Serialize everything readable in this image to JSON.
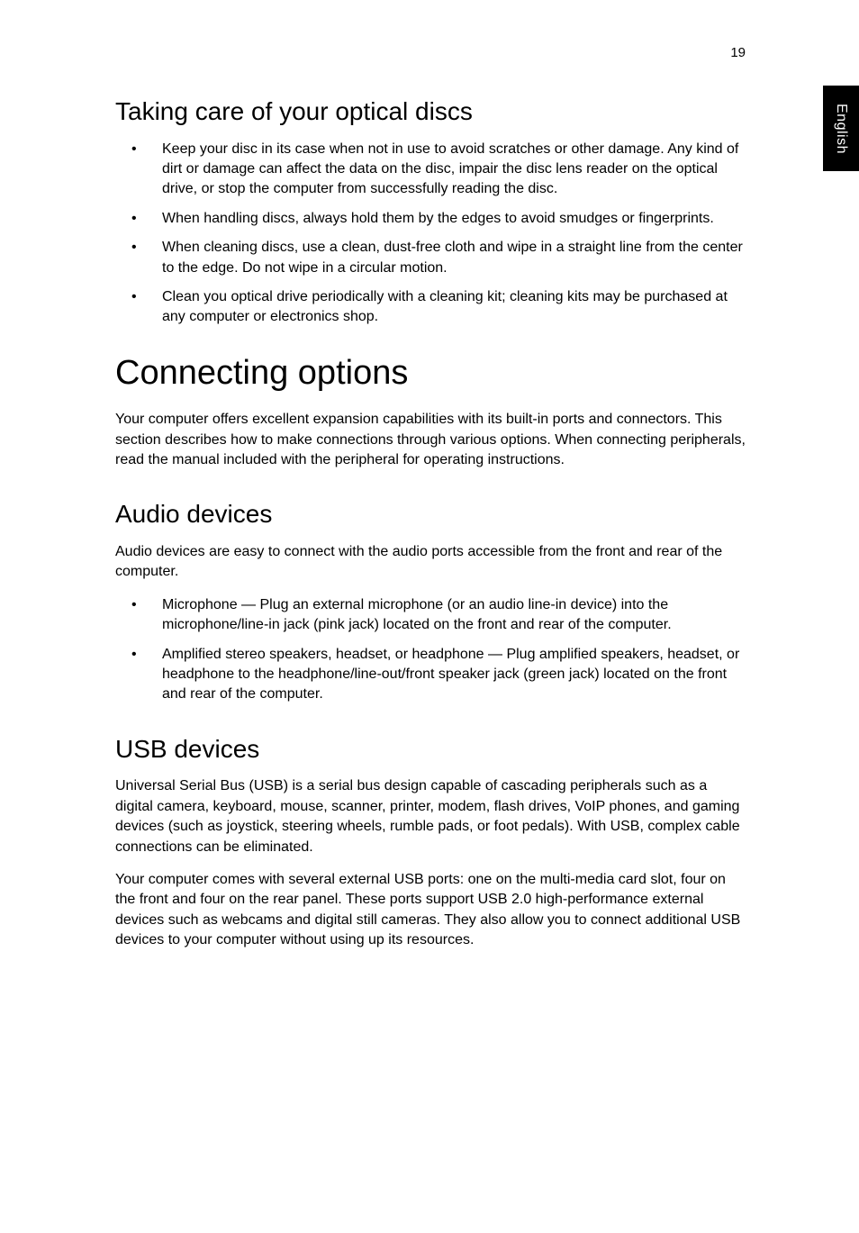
{
  "page_number": "19",
  "side_tab": "English",
  "sections": {
    "optical_discs": {
      "heading": "Taking care of your optical discs",
      "bullets": [
        "Keep your disc in its case when not in use to avoid scratches or other damage. Any kind of dirt or damage can affect the data on the disc, impair the disc lens reader on the optical drive, or stop the computer from successfully reading the disc.",
        "When handling discs, always hold them by the edges to avoid smudges or fingerprints.",
        "When cleaning discs, use a clean, dust-free cloth and wipe in a straight line from the center to the edge. Do not wipe in a circular motion.",
        "Clean you optical drive periodically with a cleaning kit; cleaning kits may be purchased at any computer or electronics shop."
      ]
    },
    "connecting": {
      "heading": "Connecting options",
      "intro": "Your computer offers excellent expansion capabilities with its built-in ports and connectors. This section describes how to make connections through various options. When connecting peripherals, read the manual included with the peripheral for operating instructions."
    },
    "audio": {
      "heading": "Audio devices",
      "intro": "Audio devices are easy to connect with the audio ports accessible from the front and rear of the computer.",
      "bullets": [
        "Microphone — Plug an external microphone (or an audio line-in device) into the microphone/line-in jack (pink jack) located on the front and rear  of the computer.",
        "Amplified stereo speakers, headset, or headphone — Plug amplified speakers, headset, or headphone to the headphone/line-out/front speaker jack (green jack) located on the front and rear of the computer."
      ]
    },
    "usb": {
      "heading": "USB devices",
      "p1": "Universal Serial Bus (USB) is a serial bus design capable of cascading peripherals such as a digital camera, keyboard, mouse, scanner, printer, modem, flash drives, VoIP phones, and gaming devices (such as joystick, steering wheels, rumble pads, or foot pedals). With USB, complex cable connections can be eliminated.",
      "p2": "Your computer comes with several external USB ports: one on the multi-media card slot, four on the front and four on the rear panel. These ports support USB 2.0 high-performance external devices such as webcams and digital still cameras. They also allow you to connect additional USB devices to your computer without using up its resources."
    }
  },
  "colors": {
    "background": "#ffffff",
    "text": "#000000",
    "tab_bg": "#000000",
    "tab_text": "#ffffff"
  },
  "typography": {
    "body_fontsize": 16,
    "h1_fontsize": 38,
    "h2_fontsize": 28,
    "font_family": "Arial, Helvetica, sans-serif"
  }
}
